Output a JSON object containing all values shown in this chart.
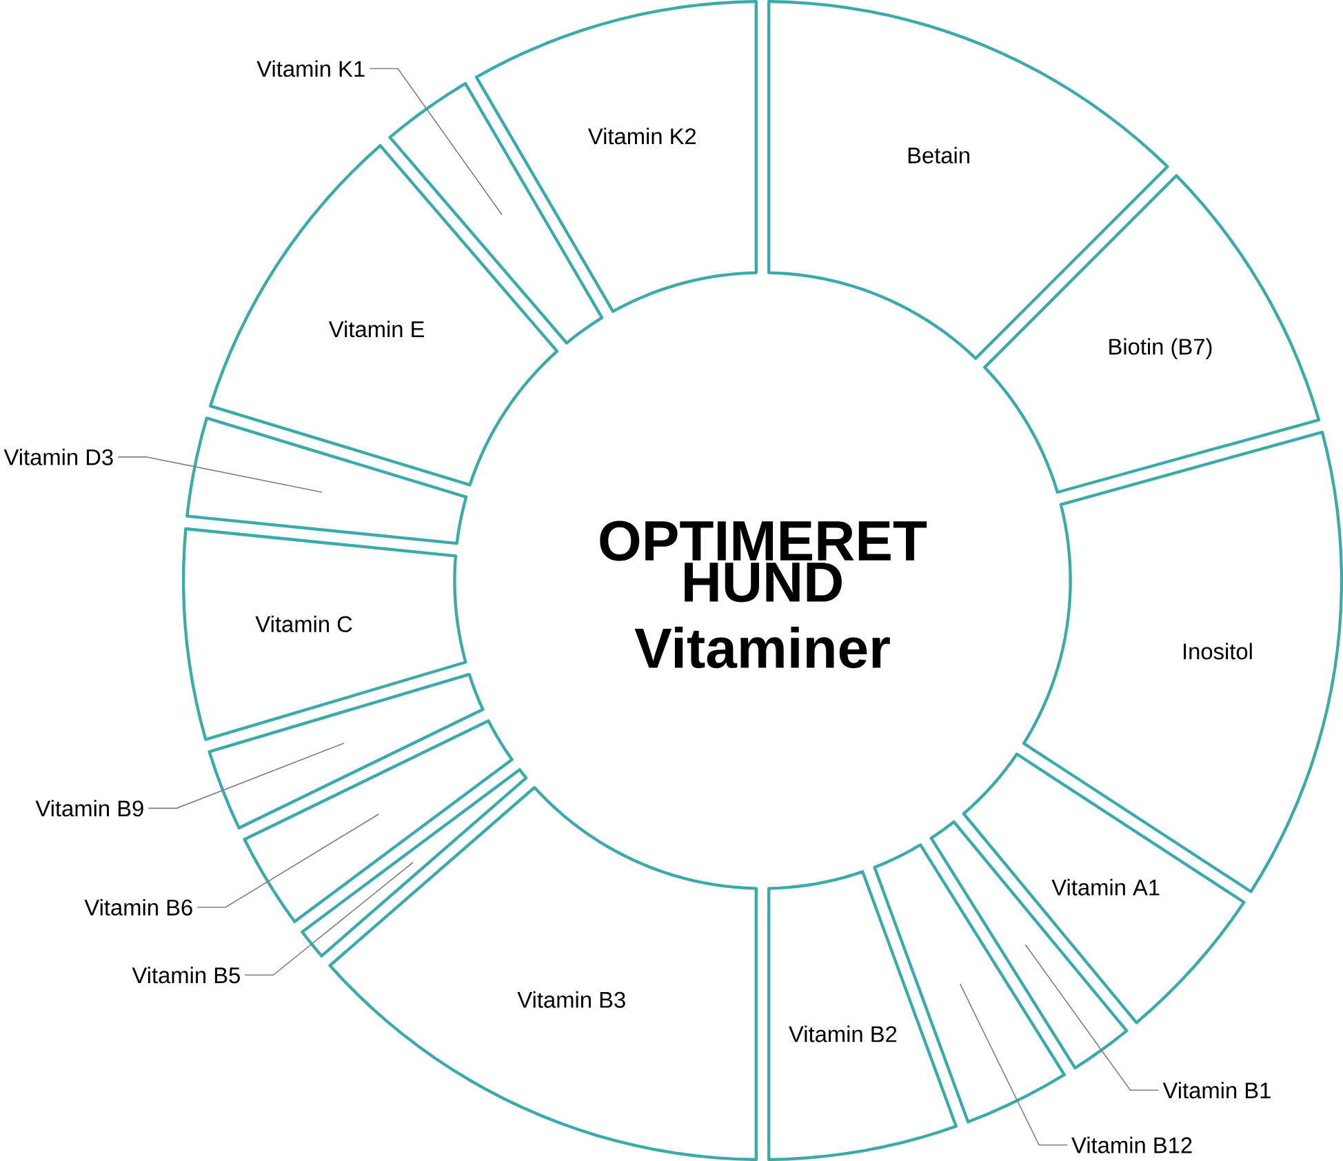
{
  "chart_data": {
    "type": "donut",
    "title": "OPTIMERET HUND",
    "subtitle": "Vitaminer",
    "categories": [
      "Betain",
      "Biotin (B7)",
      "Inositol",
      "Vitamin A1",
      "Vitamin B1",
      "Vitamin B12",
      "Vitamin B2",
      "Vitamin B3",
      "Vitamin B5",
      "Vitamin B6",
      "Vitamin B9",
      "Vitamin C",
      "Vitamin D3",
      "Vitamin E",
      "Vitamin K1",
      "Vitamin K2"
    ],
    "values": [
      12.5,
      8.2,
      13.5,
      4.8,
      2.1,
      3.3,
      5.6,
      13.6,
      1.2,
      3.0,
      2.6,
      6.2,
      3.1,
      9.0,
      2.9,
      8.4
    ],
    "color": "#ffffff"
  }
}
